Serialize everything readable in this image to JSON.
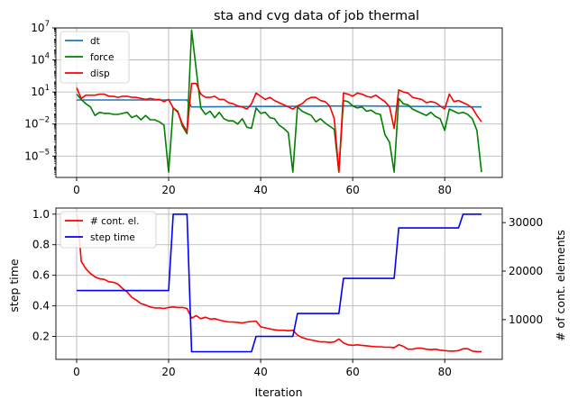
{
  "chart_data": [
    {
      "type": "line",
      "title": "sta and cvg data of job thermal",
      "xlabel": "",
      "ylabel": "",
      "yscale": "log",
      "xlim": [
        -4.5,
        92.5
      ],
      "ylim_exp": [
        -7,
        7
      ],
      "xticks": [
        0,
        20,
        40,
        60,
        80
      ],
      "yticks": [
        {
          "exp": 7,
          "label": "10",
          "sup": "7"
        },
        {
          "exp": 4,
          "label": "10",
          "sup": "4"
        },
        {
          "exp": 1,
          "label": "10",
          "sup": "1"
        },
        {
          "exp": -2,
          "label": "10",
          "sup": "−2"
        },
        {
          "exp": -5,
          "label": "10",
          "sup": "−5"
        }
      ],
      "grid": true,
      "legend": "top-left",
      "series": [
        {
          "name": "dt",
          "color": "#1f77b4",
          "x": [
            0,
            24,
            25,
            60,
            88
          ],
          "log10_y": [
            0.25,
            0.25,
            -0.4,
            -0.3,
            -0.4
          ]
        },
        {
          "name": "force",
          "color": "#008000",
          "x": [
            0,
            1,
            2,
            3,
            4,
            5,
            6,
            7,
            8,
            9,
            10,
            11,
            12,
            13,
            14,
            15,
            16,
            17,
            18,
            19,
            20,
            21,
            22,
            23,
            24,
            25,
            26,
            27,
            28,
            29,
            30,
            31,
            32,
            33,
            34,
            35,
            36,
            37,
            38,
            39,
            40,
            41,
            42,
            43,
            44,
            45,
            46,
            47,
            48,
            49,
            50,
            51,
            52,
            53,
            54,
            55,
            56,
            57,
            58,
            59,
            60,
            61,
            62,
            63,
            64,
            65,
            66,
            67,
            68,
            69,
            70,
            71,
            72,
            73,
            74,
            75,
            76,
            77,
            78,
            79,
            80,
            81,
            82,
            83,
            84,
            85,
            86,
            87,
            88
          ],
          "log10_y": [
            0.8,
            0.3,
            -0.1,
            -0.4,
            -1.2,
            -0.9,
            -1.0,
            -1.0,
            -1.1,
            -1.1,
            -1.0,
            -0.9,
            -1.4,
            -1.2,
            -1.6,
            -1.2,
            -1.6,
            -1.6,
            -1.8,
            -2.1,
            -6.5,
            -0.5,
            -0.8,
            -2.2,
            -2.9,
            6.8,
            3.1,
            -0.5,
            -1.1,
            -0.8,
            -1.4,
            -0.9,
            -1.5,
            -1.7,
            -1.7,
            -2.0,
            -1.5,
            -2.3,
            -2.4,
            -0.5,
            -1.0,
            -0.9,
            -1.4,
            -1.5,
            -2.1,
            -2.4,
            -2.8,
            -6.5,
            -0.4,
            -0.8,
            -1.0,
            -1.2,
            -1.8,
            -1.5,
            -1.9,
            -2.2,
            -2.5,
            -6.5,
            0.2,
            0.1,
            -0.3,
            -0.5,
            -0.4,
            -0.8,
            -0.7,
            -1.0,
            -1.1,
            -3.0,
            -3.7,
            -6.5,
            0.4,
            -0.1,
            -0.2,
            -0.6,
            -0.8,
            -1.0,
            -1.2,
            -0.9,
            -1.3,
            -1.5,
            -2.6,
            -0.6,
            -0.8,
            -1.0,
            -0.9,
            -1.1,
            -1.5,
            -2.6,
            -6.5
          ]
        },
        {
          "name": "disp",
          "color": "#ff0000",
          "x": [
            0,
            1,
            2,
            3,
            4,
            5,
            6,
            7,
            8,
            9,
            10,
            11,
            12,
            13,
            14,
            15,
            16,
            17,
            18,
            19,
            20,
            21,
            22,
            23,
            24,
            25,
            26,
            27,
            28,
            29,
            30,
            31,
            32,
            33,
            34,
            35,
            36,
            37,
            38,
            39,
            40,
            41,
            42,
            43,
            44,
            45,
            46,
            47,
            48,
            49,
            50,
            51,
            52,
            53,
            54,
            55,
            56,
            57,
            58,
            59,
            60,
            61,
            62,
            63,
            64,
            65,
            66,
            67,
            68,
            69,
            70,
            71,
            72,
            73,
            74,
            75,
            76,
            77,
            78,
            79,
            80,
            81,
            82,
            83,
            84,
            85,
            86,
            87,
            88
          ],
          "log10_y": [
            1.4,
            0.4,
            0.7,
            0.7,
            0.7,
            0.8,
            0.8,
            0.6,
            0.6,
            0.5,
            0.6,
            0.6,
            0.5,
            0.5,
            0.4,
            0.3,
            0.4,
            0.3,
            0.3,
            0.1,
            0.3,
            -0.5,
            -0.9,
            -2.0,
            -2.7,
            1.8,
            1.8,
            0.8,
            0.5,
            0.5,
            0.6,
            0.3,
            0.3,
            0.0,
            -0.1,
            -0.3,
            -0.4,
            -0.6,
            -0.1,
            0.9,
            0.6,
            0.3,
            0.5,
            0.2,
            0.0,
            -0.2,
            -0.4,
            -0.6,
            -0.3,
            -0.1,
            0.3,
            0.5,
            0.5,
            0.2,
            0.1,
            -0.3,
            -1.5,
            -6.5,
            0.9,
            0.8,
            0.6,
            0.9,
            0.8,
            0.6,
            0.5,
            0.7,
            0.4,
            0.1,
            -0.4,
            -2.4,
            1.2,
            1.0,
            0.9,
            0.5,
            0.4,
            0.3,
            0.0,
            0.1,
            0.0,
            -0.3,
            -0.6,
            0.8,
            0.1,
            0.2,
            0.0,
            -0.2,
            -0.5,
            -1.2,
            -1.8
          ]
        }
      ]
    },
    {
      "type": "line",
      "title": "",
      "xlabel": "Iteration",
      "ylabel": "step time",
      "y2label": "# of cont. elements",
      "xlim": [
        -4.5,
        92.5
      ],
      "ylim": [
        0.05,
        1.04
      ],
      "y2lim": [
        1800,
        33000
      ],
      "xticks": [
        0,
        20,
        40,
        60,
        80
      ],
      "yticks": [
        0.2,
        0.4,
        0.6,
        0.8,
        1.0
      ],
      "y2ticks": [
        10000,
        20000,
        30000
      ],
      "grid": true,
      "legend": "top-left",
      "series": [
        {
          "name": "# cont. el.",
          "color": "#ff0000",
          "axis": "right",
          "x": [
            0,
            0.5,
            1,
            2,
            3,
            4,
            5,
            6,
            7,
            8,
            9,
            10,
            11,
            12,
            13,
            14,
            15,
            16,
            17,
            18,
            19,
            20,
            21,
            22,
            23,
            24,
            25,
            26,
            27,
            28,
            29,
            30,
            31,
            32,
            33,
            34,
            35,
            36,
            37,
            38,
            39,
            40,
            41,
            42,
            43,
            44,
            45,
            46,
            47,
            48,
            49,
            50,
            51,
            52,
            53,
            54,
            55,
            56,
            57,
            58,
            59,
            60,
            61,
            62,
            63,
            64,
            65,
            66,
            67,
            68,
            69,
            70,
            71,
            72,
            73,
            74,
            75,
            76,
            77,
            78,
            79,
            80,
            81,
            82,
            83,
            84,
            85,
            86,
            87,
            88
          ],
          "y": [
            32000,
            28000,
            22000,
            20500,
            19500,
            18800,
            18400,
            18300,
            17800,
            17700,
            17300,
            16400,
            15700,
            14600,
            14000,
            13300,
            13000,
            12600,
            12400,
            12400,
            12300,
            12500,
            12600,
            12500,
            12500,
            12300,
            10300,
            10800,
            10200,
            10500,
            10100,
            10200,
            9900,
            9700,
            9500,
            9500,
            9400,
            9300,
            9500,
            9600,
            9700,
            8500,
            8300,
            8100,
            7900,
            7800,
            7800,
            7700,
            7800,
            6800,
            6300,
            6000,
            5800,
            5600,
            5400,
            5400,
            5300,
            5400,
            6000,
            5200,
            4800,
            4700,
            4800,
            4700,
            4600,
            4500,
            4400,
            4400,
            4300,
            4300,
            4200,
            4800,
            4500,
            3900,
            3900,
            4100,
            4100,
            3900,
            3800,
            3900,
            3700,
            3600,
            3500,
            3500,
            3600,
            4000,
            4000,
            3500,
            3400,
            3400
          ]
        },
        {
          "name": "step time",
          "color": "#0000ff",
          "axis": "left",
          "x": [
            0,
            20,
            21,
            24,
            25,
            38,
            39,
            47,
            48,
            57,
            58,
            69,
            70,
            83,
            84,
            88
          ],
          "y": [
            0.5,
            0.5,
            1.0,
            1.0,
            0.1,
            0.1,
            0.2,
            0.2,
            0.35,
            0.35,
            0.58,
            0.58,
            0.91,
            0.91,
            1.0,
            1.0
          ]
        }
      ]
    }
  ]
}
